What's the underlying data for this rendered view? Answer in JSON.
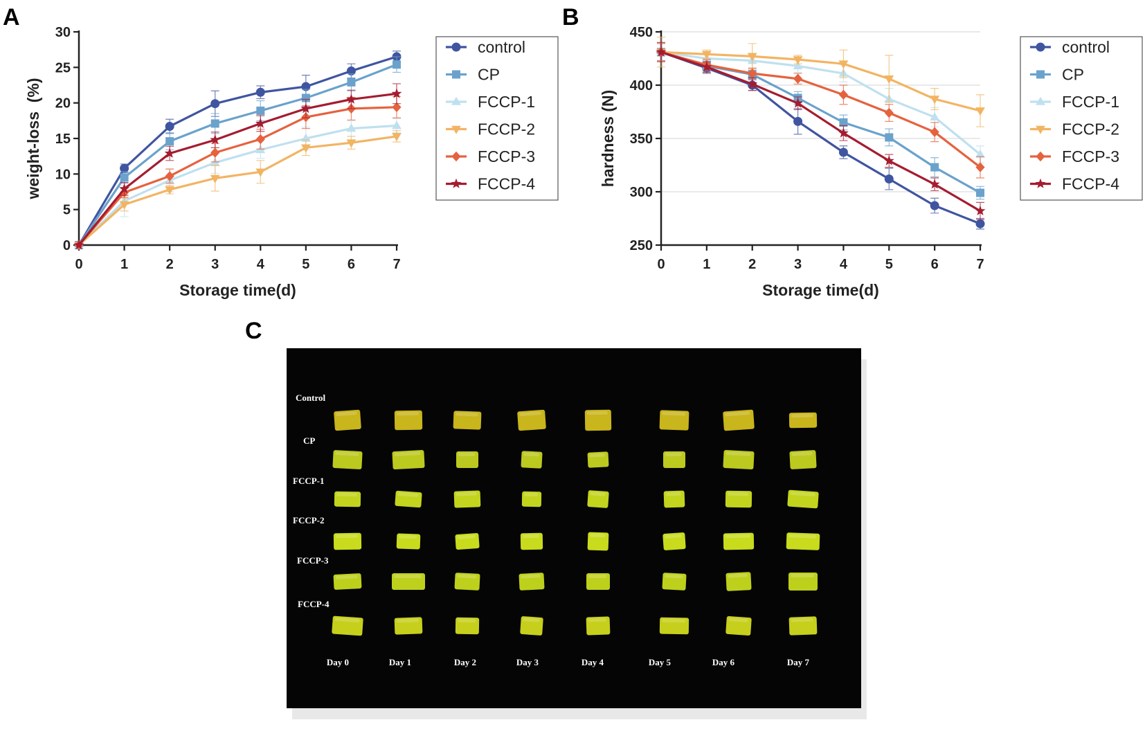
{
  "figure": {
    "panel_labels": [
      "A",
      "B",
      "C"
    ]
  },
  "chart_data": [
    {
      "type": "line",
      "panel": "A",
      "title": "",
      "xlabel": "Storage time(d)",
      "ylabel": "weight-loss  (%)",
      "x": [
        0,
        1,
        2,
        3,
        4,
        5,
        6,
        7
      ],
      "xticks": [
        "0",
        "1",
        "2",
        "3",
        "4",
        "5",
        "6",
        "7"
      ],
      "ylim": [
        0,
        30
      ],
      "yticks": [
        "0",
        "5",
        "10",
        "15",
        "20",
        "25",
        "30"
      ],
      "grid": false,
      "legend_position": "right",
      "series": [
        {
          "name": "control",
          "color": "#4055a0",
          "marker": "circle",
          "values": [
            0,
            10.8,
            16.7,
            19.9,
            21.5,
            22.3,
            24.5,
            26.5
          ],
          "errors": [
            0,
            0.6,
            1.0,
            1.8,
            0.9,
            1.6,
            1.0,
            0.8
          ]
        },
        {
          "name": "CP",
          "color": "#6aa2cc",
          "marker": "square",
          "values": [
            0,
            9.5,
            14.6,
            17.1,
            18.9,
            20.7,
            22.9,
            25.4
          ],
          "errors": [
            0,
            0.8,
            1.2,
            1.4,
            1.4,
            1.2,
            1.2,
            1.1
          ]
        },
        {
          "name": "FCCP-1",
          "color": "#bfe0ef",
          "marker": "triangle-up",
          "values": [
            0,
            6.2,
            9.1,
            11.6,
            13.4,
            15.0,
            16.4,
            16.8
          ],
          "errors": [
            0,
            2.2,
            1.6,
            1.5,
            1.2,
            1.6,
            1.1,
            1.0
          ]
        },
        {
          "name": "FCCP-2",
          "color": "#f2b463",
          "marker": "triangle-down",
          "values": [
            0,
            5.7,
            7.8,
            9.4,
            10.3,
            13.7,
            14.4,
            15.3
          ],
          "errors": [
            0,
            0.9,
            0.6,
            1.8,
            1.6,
            1.1,
            0.9,
            0.8
          ]
        },
        {
          "name": "FCCP-3",
          "color": "#e5623e",
          "marker": "diamond",
          "values": [
            0,
            7.4,
            9.7,
            13.0,
            14.9,
            18.0,
            19.2,
            19.4
          ],
          "errors": [
            0,
            0.7,
            1.0,
            1.3,
            1.4,
            1.6,
            1.6,
            1.5
          ]
        },
        {
          "name": "FCCP-4",
          "color": "#a51c30",
          "marker": "star",
          "values": [
            0,
            7.9,
            12.9,
            14.8,
            17.1,
            19.2,
            20.5,
            21.3
          ],
          "errors": [
            0,
            0.9,
            1.0,
            1.1,
            1.1,
            1.3,
            1.3,
            1.4
          ]
        }
      ]
    },
    {
      "type": "line",
      "panel": "B",
      "title": "",
      "xlabel": "Storage time(d)",
      "ylabel": "hardness (N)",
      "x": [
        0,
        1,
        2,
        3,
        4,
        5,
        6,
        7
      ],
      "xticks": [
        "0",
        "1",
        "2",
        "3",
        "4",
        "5",
        "6",
        "7"
      ],
      "ylim": [
        250,
        450
      ],
      "yticks": [
        "250",
        "300",
        "350",
        "400",
        "450"
      ],
      "grid": true,
      "legend_position": "right",
      "series": [
        {
          "name": "control",
          "color": "#4055a0",
          "marker": "circle",
          "values": [
            431,
            416,
            400,
            366,
            337,
            312,
            287,
            270
          ],
          "errors": [
            8,
            5,
            5,
            12,
            6,
            10,
            7,
            5
          ]
        },
        {
          "name": "CP",
          "color": "#6aa2cc",
          "marker": "square",
          "values": [
            431,
            418,
            410,
            388,
            365,
            351,
            323,
            299
          ],
          "errors": [
            8,
            5,
            4,
            6,
            7,
            8,
            9,
            6
          ]
        },
        {
          "name": "FCCP-1",
          "color": "#bfe0ef",
          "marker": "triangle-up",
          "values": [
            431,
            425,
            423,
            418,
            411,
            387,
            370,
            335
          ],
          "errors": [
            8,
            6,
            7,
            6,
            8,
            10,
            9,
            8
          ]
        },
        {
          "name": "FCCP-2",
          "color": "#f2b463",
          "marker": "triangle-down",
          "values": [
            431,
            429,
            427,
            424,
            420,
            406,
            387,
            376
          ],
          "errors": [
            14,
            4,
            12,
            4,
            13,
            22,
            10,
            15
          ]
        },
        {
          "name": "FCCP-3",
          "color": "#e5623e",
          "marker": "diamond",
          "values": [
            431,
            419,
            411,
            406,
            391,
            374,
            356,
            323
          ],
          "errors": [
            8,
            5,
            5,
            5,
            9,
            8,
            9,
            10
          ]
        },
        {
          "name": "FCCP-4",
          "color": "#a51c30",
          "marker": "star",
          "values": [
            431,
            417,
            401,
            383,
            355,
            329,
            307,
            282
          ],
          "errors": [
            9,
            5,
            6,
            6,
            7,
            6,
            6,
            8
          ]
        }
      ]
    }
  ],
  "photo": {
    "rows": [
      "Control",
      "CP",
      "FCCP-1",
      "FCCP-2",
      "FCCP-3",
      "FCCP-4"
    ],
    "days": [
      "Day 0",
      "Day 1",
      "Day 2",
      "Day 3",
      "Day 4",
      "Day 5",
      "Day 6",
      "Day 7"
    ],
    "row_colors": [
      "#c9b51c",
      "#bcc91f",
      "#c3d41e",
      "#c8db1d",
      "#bdd01c",
      "#c6cf1c"
    ],
    "background_color": "#050505"
  }
}
